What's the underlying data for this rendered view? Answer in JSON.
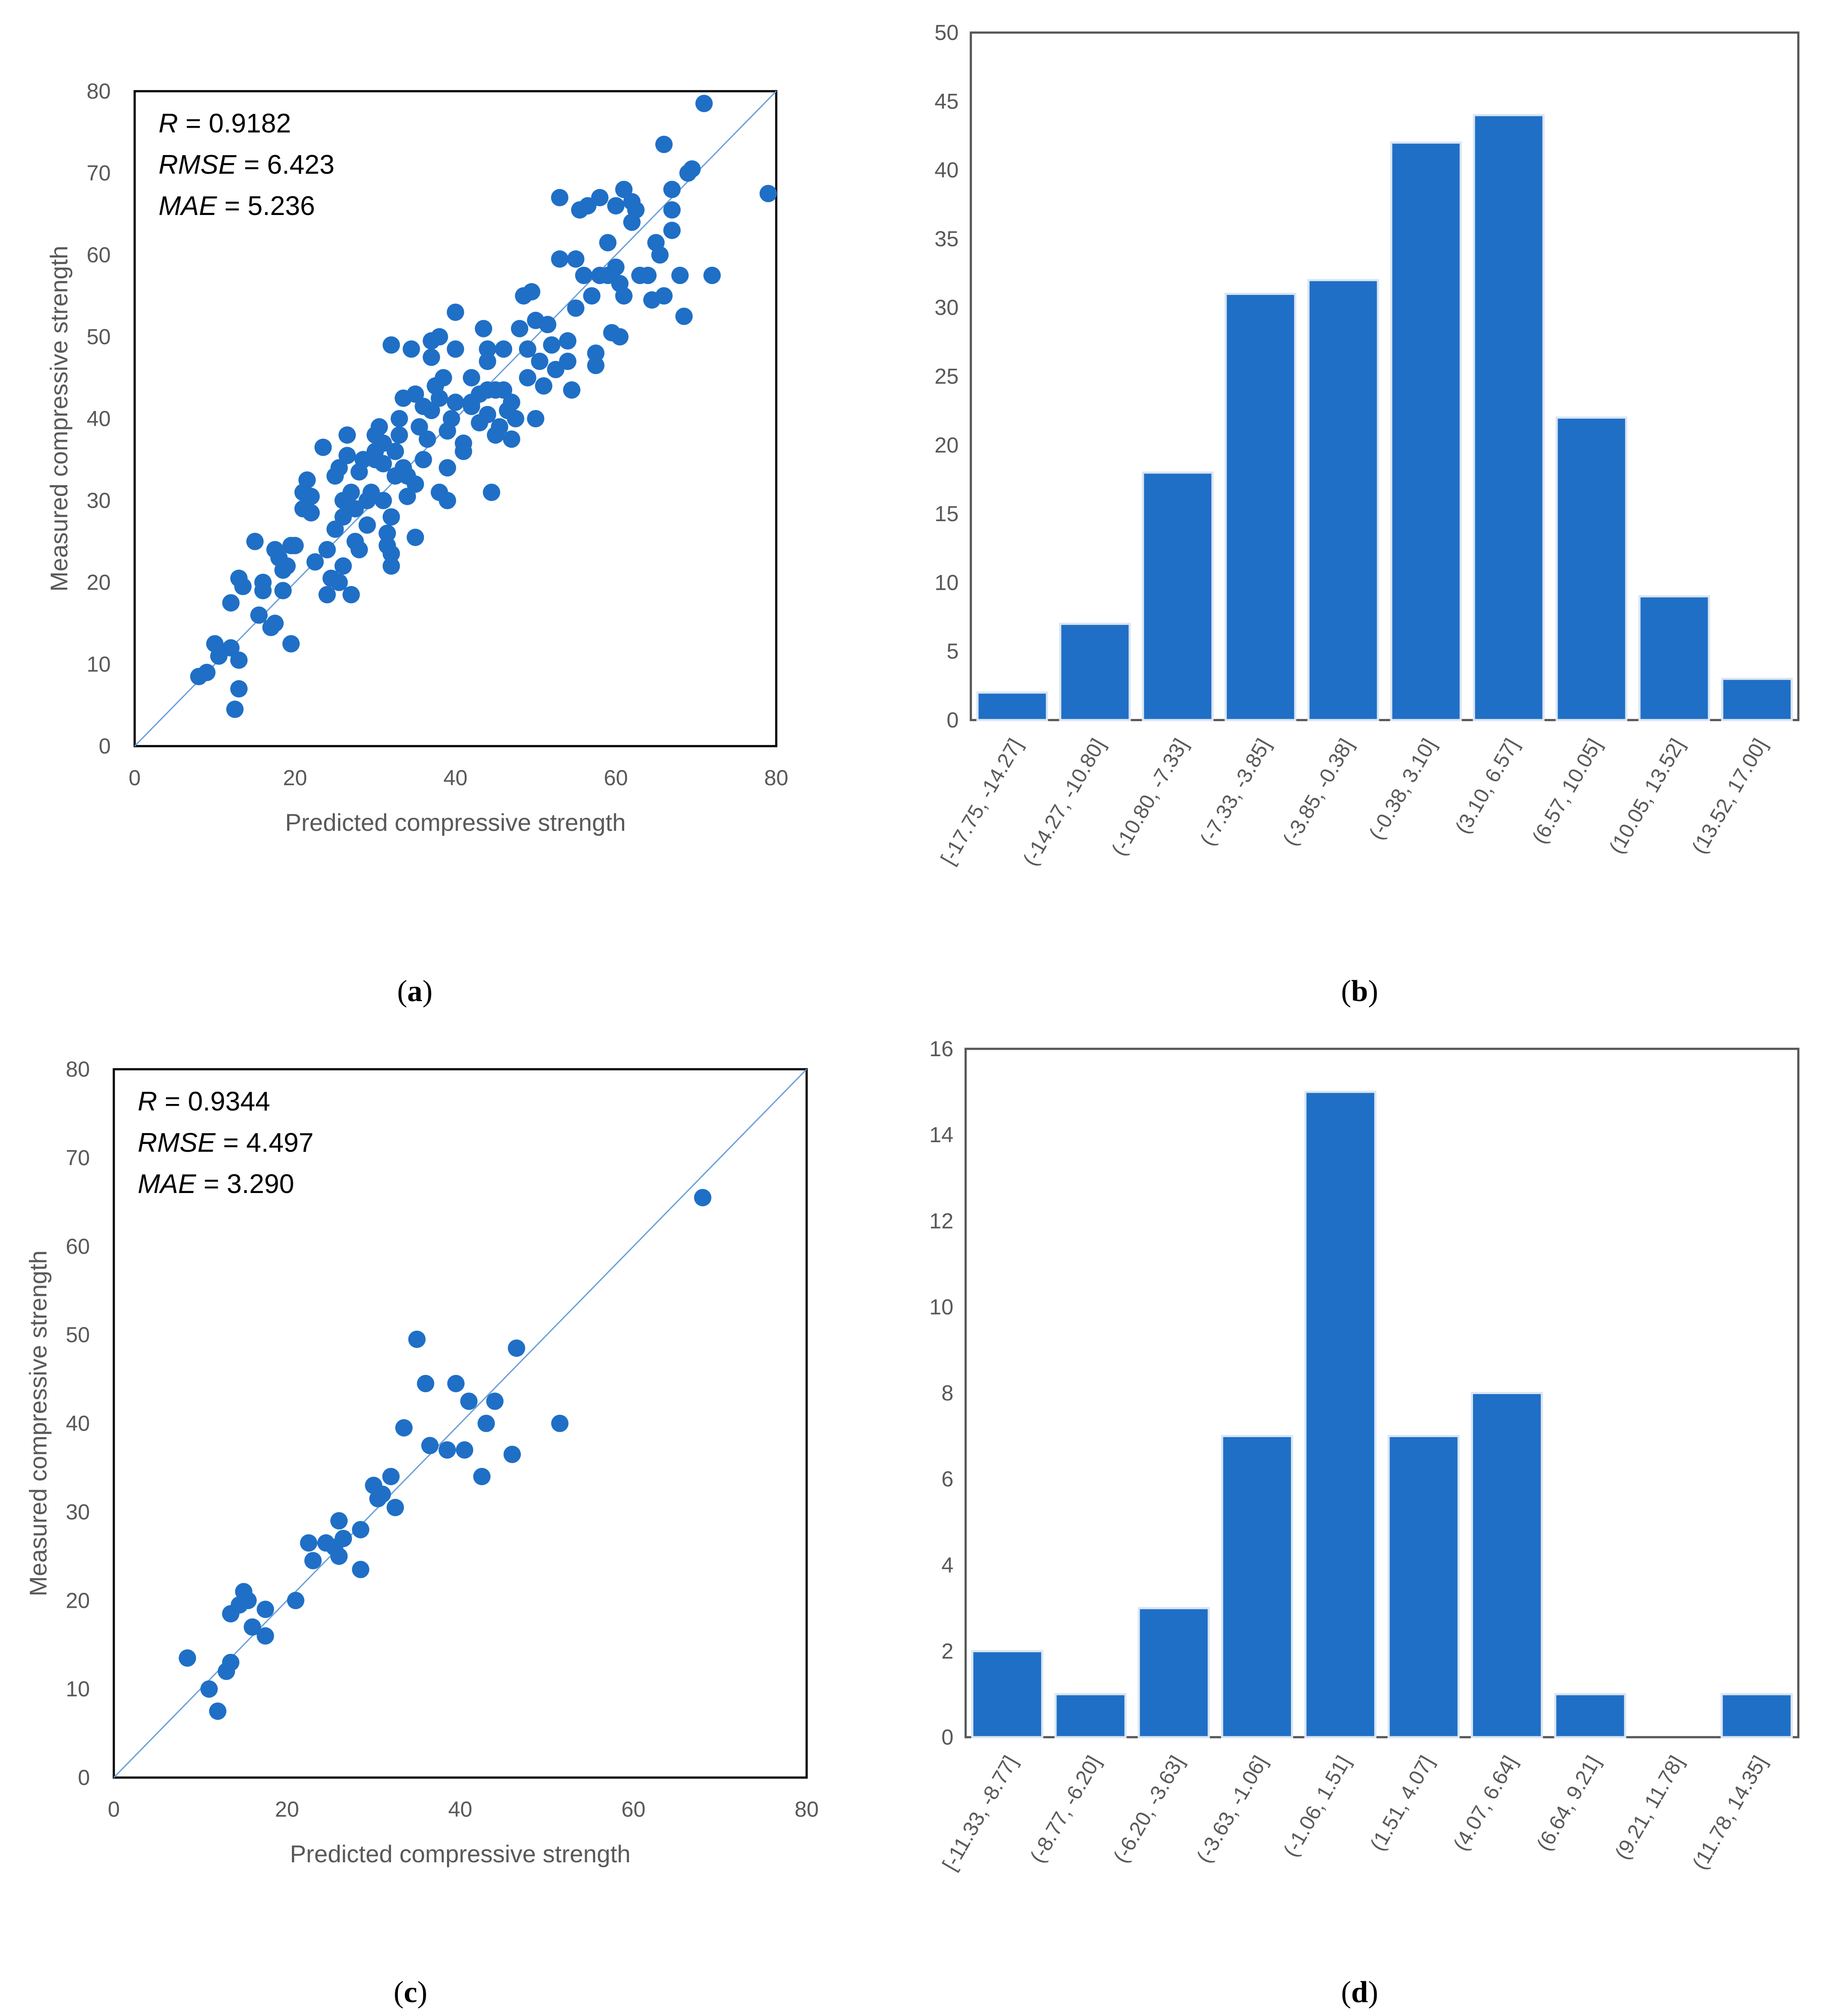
{
  "chart_data": [
    {
      "id": "a",
      "type": "scatter",
      "panel_label": "a",
      "xlabel": "Predicted compressive strength",
      "ylabel": "Measured compressive strength",
      "xlim": [
        0,
        80
      ],
      "ylim": [
        0,
        80
      ],
      "xticks": [
        0,
        20,
        40,
        60,
        80
      ],
      "yticks": [
        0,
        10,
        20,
        30,
        40,
        50,
        60,
        70,
        80
      ],
      "reference_line": "y = x",
      "stats": [
        {
          "name": "R",
          "value": "0.9182"
        },
        {
          "name": "RMSE",
          "value": "6.423"
        },
        {
          "name": "MAE",
          "value": "5.236"
        }
      ],
      "points": [
        [
          8,
          8.5
        ],
        [
          9,
          9
        ],
        [
          10,
          12.5
        ],
        [
          10.5,
          11
        ],
        [
          12,
          12
        ],
        [
          12,
          17.5
        ],
        [
          12.5,
          4.5
        ],
        [
          13,
          7
        ],
        [
          13,
          10.5
        ],
        [
          13,
          20.5
        ],
        [
          13.5,
          19.5
        ],
        [
          15,
          25
        ],
        [
          15.5,
          16
        ],
        [
          16,
          19
        ],
        [
          16,
          20
        ],
        [
          17,
          14.5
        ],
        [
          17.5,
          15
        ],
        [
          17.5,
          24
        ],
        [
          18,
          23
        ],
        [
          18.5,
          21.5
        ],
        [
          18.5,
          19
        ],
        [
          19,
          22
        ],
        [
          19.5,
          24.5
        ],
        [
          19.5,
          12.5
        ],
        [
          20,
          24.5
        ],
        [
          21,
          31
        ],
        [
          21,
          29
        ],
        [
          21.5,
          32.5
        ],
        [
          22,
          28.5
        ],
        [
          22,
          30.5
        ],
        [
          22.5,
          22.5
        ],
        [
          23.5,
          36.5
        ],
        [
          24,
          24
        ],
        [
          24,
          18.5
        ],
        [
          24.5,
          20.5
        ],
        [
          25,
          26.5
        ],
        [
          25,
          33
        ],
        [
          25.5,
          34
        ],
        [
          25.5,
          20
        ],
        [
          26,
          28
        ],
        [
          26,
          22
        ],
        [
          26,
          30
        ],
        [
          26.5,
          38
        ],
        [
          26.5,
          35.5
        ],
        [
          27,
          31
        ],
        [
          27,
          18.5
        ],
        [
          27.5,
          25
        ],
        [
          27.5,
          29
        ],
        [
          28,
          24
        ],
        [
          28,
          33.5
        ],
        [
          28.5,
          35
        ],
        [
          29,
          27
        ],
        [
          29,
          30
        ],
        [
          29.5,
          31
        ],
        [
          30,
          36
        ],
        [
          30,
          38
        ],
        [
          30,
          35
        ],
        [
          30.5,
          39
        ],
        [
          31,
          30
        ],
        [
          31,
          34.5
        ],
        [
          31,
          37
        ],
        [
          31.5,
          26
        ],
        [
          31.5,
          24.5
        ],
        [
          32,
          22
        ],
        [
          32,
          23.5
        ],
        [
          32,
          28
        ],
        [
          32,
          49
        ],
        [
          32.5,
          36
        ],
        [
          32.5,
          33
        ],
        [
          33,
          40
        ],
        [
          33,
          38
        ],
        [
          33.5,
          42.5
        ],
        [
          33.5,
          34
        ],
        [
          34,
          33
        ],
        [
          34,
          30.5
        ],
        [
          34.5,
          48.5
        ],
        [
          35,
          25.5
        ],
        [
          35,
          32
        ],
        [
          35,
          43
        ],
        [
          35.5,
          39
        ],
        [
          36,
          41.5
        ],
        [
          36,
          35
        ],
        [
          36.5,
          37.5
        ],
        [
          37,
          49.5
        ],
        [
          37,
          47.5
        ],
        [
          37,
          41
        ],
        [
          37.5,
          44
        ],
        [
          38,
          50
        ],
        [
          38,
          42.5
        ],
        [
          38,
          31
        ],
        [
          38.5,
          45
        ],
        [
          39,
          38.5
        ],
        [
          39,
          34
        ],
        [
          39,
          30
        ],
        [
          39.5,
          40
        ],
        [
          40,
          53
        ],
        [
          40,
          42
        ],
        [
          40,
          48.5
        ],
        [
          41,
          37
        ],
        [
          41,
          36
        ],
        [
          42,
          45
        ],
        [
          42,
          42
        ],
        [
          42,
          41.5
        ],
        [
          43,
          43
        ],
        [
          43,
          39.5
        ],
        [
          43.5,
          51
        ],
        [
          44,
          48.5
        ],
        [
          44,
          43.5
        ],
        [
          44,
          47
        ],
        [
          44,
          40.5
        ],
        [
          44.5,
          31
        ],
        [
          45,
          43.5
        ],
        [
          45,
          38
        ],
        [
          45.5,
          39
        ],
        [
          46,
          48.5
        ],
        [
          46,
          43.5
        ],
        [
          46.5,
          41
        ],
        [
          47,
          42
        ],
        [
          47,
          37.5
        ],
        [
          47.5,
          40
        ],
        [
          48,
          51
        ],
        [
          48.5,
          55
        ],
        [
          49,
          48.5
        ],
        [
          49,
          45
        ],
        [
          49.5,
          55.5
        ],
        [
          50,
          52
        ],
        [
          50,
          40
        ],
        [
          50.5,
          47
        ],
        [
          51,
          44
        ],
        [
          51.5,
          51.5
        ],
        [
          52,
          49
        ],
        [
          52.5,
          46
        ],
        [
          53,
          59.5
        ],
        [
          53,
          67
        ],
        [
          54,
          47
        ],
        [
          54,
          49.5
        ],
        [
          54.5,
          43.5
        ],
        [
          55,
          53.5
        ],
        [
          55,
          59.5
        ],
        [
          55.5,
          65.5
        ],
        [
          56,
          57.5
        ],
        [
          56.5,
          66
        ],
        [
          57,
          55
        ],
        [
          57.5,
          48
        ],
        [
          57.5,
          46.5
        ],
        [
          58,
          57.5
        ],
        [
          58,
          67
        ],
        [
          59,
          61.5
        ],
        [
          59,
          57.5
        ],
        [
          59.5,
          50.5
        ],
        [
          60,
          58.5
        ],
        [
          60,
          66
        ],
        [
          60.5,
          56.5
        ],
        [
          60.5,
          50
        ],
        [
          61,
          55
        ],
        [
          61,
          68
        ],
        [
          62,
          64
        ],
        [
          62,
          66.5
        ],
        [
          62.5,
          65.5
        ],
        [
          63,
          57.5
        ],
        [
          64,
          57.5
        ],
        [
          64.5,
          54.5
        ],
        [
          65,
          61.5
        ],
        [
          65.5,
          60
        ],
        [
          66,
          73.5
        ],
        [
          66,
          55
        ],
        [
          67,
          68
        ],
        [
          67,
          65.5
        ],
        [
          67,
          63
        ],
        [
          68,
          57.5
        ],
        [
          68.5,
          52.5
        ],
        [
          69,
          70
        ],
        [
          69.5,
          70.5
        ],
        [
          71,
          78.5
        ],
        [
          72,
          57.5
        ],
        [
          79,
          67.5
        ]
      ]
    },
    {
      "id": "b",
      "type": "bar",
      "panel_label": "b",
      "xlabel": "",
      "ylabel": "",
      "ylim": [
        0,
        50
      ],
      "yticks": [
        0,
        5,
        10,
        15,
        20,
        25,
        30,
        35,
        40,
        45,
        50
      ],
      "categories": [
        "[-17.75, -14.27]",
        "(-14.27, -10.80]",
        "(-10.80, -7.33]",
        "(-7.33, -3.85]",
        "(-3.85, -0.38]",
        "(-0.38, 3.10]",
        "(3.10, 6.57]",
        "(6.57, 10.05]",
        "(10.05, 13.52]",
        "(13.52, 17.00]"
      ],
      "values": [
        2,
        7,
        18,
        31,
        32,
        42,
        44,
        22,
        9,
        3
      ]
    },
    {
      "id": "c",
      "type": "scatter",
      "panel_label": "c",
      "xlabel": "Predicted compressive strength",
      "ylabel": "Measured compressive strength",
      "xlim": [
        0,
        80
      ],
      "ylim": [
        0,
        80
      ],
      "xticks": [
        0,
        20,
        40,
        60,
        80
      ],
      "yticks": [
        0,
        10,
        20,
        30,
        40,
        50,
        60,
        70,
        80
      ],
      "reference_line": "y = x",
      "stats": [
        {
          "name": "R",
          "value": "0.9344"
        },
        {
          "name": "RMSE",
          "value": "4.497"
        },
        {
          "name": "MAE",
          "value": "3.290"
        }
      ],
      "points": [
        [
          8.5,
          13.5
        ],
        [
          11,
          10
        ],
        [
          12,
          7.5
        ],
        [
          13,
          12
        ],
        [
          13.5,
          13
        ],
        [
          13.5,
          18.5
        ],
        [
          14.5,
          19.5
        ],
        [
          15,
          21
        ],
        [
          15.5,
          20
        ],
        [
          16,
          17
        ],
        [
          17.5,
          19
        ],
        [
          17.5,
          16
        ],
        [
          21,
          20
        ],
        [
          22.5,
          26.5
        ],
        [
          23,
          24.5
        ],
        [
          24.5,
          26.5
        ],
        [
          25.5,
          26
        ],
        [
          26,
          25
        ],
        [
          26.5,
          27
        ],
        [
          26,
          29
        ],
        [
          28.5,
          23.5
        ],
        [
          28.5,
          28
        ],
        [
          30,
          33
        ],
        [
          30.5,
          31.5
        ],
        [
          31,
          32
        ],
        [
          32,
          34
        ],
        [
          32.5,
          30.5
        ],
        [
          33.5,
          39.5
        ],
        [
          35,
          49.5
        ],
        [
          36,
          44.5
        ],
        [
          36.5,
          37.5
        ],
        [
          38.5,
          37
        ],
        [
          39.5,
          44.5
        ],
        [
          40.5,
          37
        ],
        [
          41,
          42.5
        ],
        [
          42.5,
          34
        ],
        [
          43,
          40
        ],
        [
          44,
          42.5
        ],
        [
          46,
          36.5
        ],
        [
          46.5,
          48.5
        ],
        [
          51.5,
          40
        ],
        [
          68,
          65.5
        ]
      ]
    },
    {
      "id": "d",
      "type": "bar",
      "panel_label": "d",
      "xlabel": "",
      "ylabel": "",
      "ylim": [
        0,
        16
      ],
      "yticks": [
        0,
        2,
        4,
        6,
        8,
        10,
        12,
        14,
        16
      ],
      "categories": [
        "[-11.33, -8.77]",
        "(-8.77, -6.20]",
        "(-6.20, -3.63]",
        "(-3.63, -1.06]",
        "(-1.06, 1.51]",
        "(1.51, 4.07]",
        "(4.07, 6.64]",
        "(6.64, 9.21]",
        "(9.21, 11.78]",
        "(11.78, 14.35]"
      ],
      "values": [
        2,
        1,
        3,
        7,
        15,
        7,
        8,
        1,
        0,
        1
      ]
    }
  ],
  "style": {
    "marker_color": "#1f6fc6",
    "bar_color": "#1f6fc6",
    "bar_edge": "#ffffff",
    "reference_line_color": "#6a9fd8",
    "axis_color": "#000000",
    "tick_color": "#595959"
  }
}
